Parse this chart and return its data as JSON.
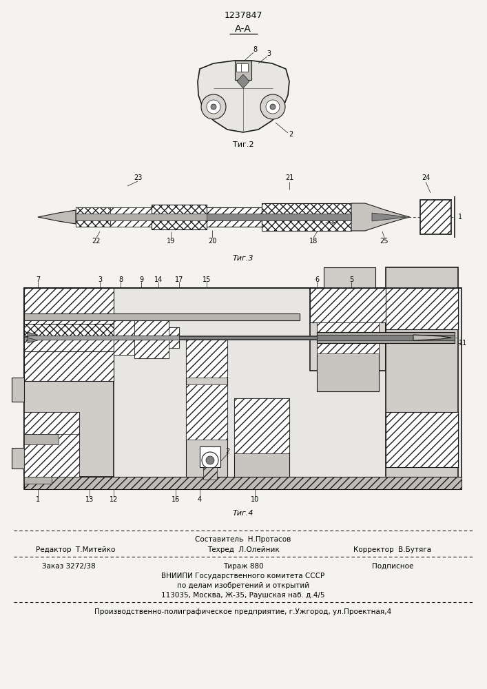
{
  "patent_number": "1237847",
  "background_color": "#f5f3f0",
  "white": "#ffffff",
  "fig2_label": "А-А",
  "fig2_caption": "Τиг.2",
  "fig3_caption": "Τиг.3",
  "fig4_caption": "Τиг.4",
  "footer_comp": "Составитель  Н.Протасов",
  "footer_editor": "Редактор  Т.Митейко",
  "footer_tech": "Техред  Л.Олейник",
  "footer_corr": "Корректор  В.Бутяга",
  "footer_zakaz": "Заказ 3272/38",
  "footer_tirazh": "Тираж 880",
  "footer_podp": "Подписное",
  "footer_line3": "ВНИИПИ Государственного комитета СССР",
  "footer_line4": "по делам изобретений и открытий",
  "footer_line5": "113035, Москва, Ж-35, Раушская наб. д.4/5",
  "footer_bottom": "Производственно-полиграфическое предприятие, г.Ужгород, ул.Проектная,4"
}
